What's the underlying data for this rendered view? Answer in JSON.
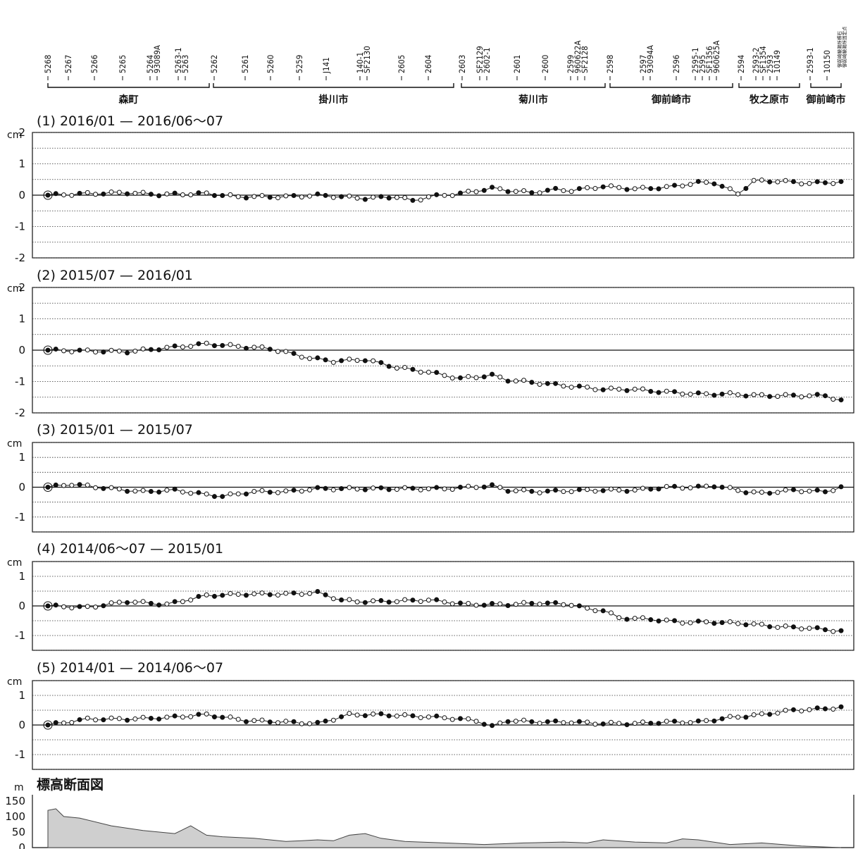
{
  "stations": [
    {
      "label": "5268"
    },
    {
      "label": "5267"
    },
    {
      "label": "5266"
    },
    {
      "label": "5265"
    },
    {
      "label": "5264\n93089A"
    },
    {
      "label": "5263-1\n5263"
    },
    {
      "label": "5262"
    },
    {
      "label": "5261"
    },
    {
      "label": "5260"
    },
    {
      "label": "5259"
    },
    {
      "label": "J141"
    },
    {
      "label": "140-1\nSF2130"
    },
    {
      "label": "2605"
    },
    {
      "label": "2604"
    },
    {
      "label": "2603"
    },
    {
      "label": "SF2129\n2602-1"
    },
    {
      "label": "2601"
    },
    {
      "label": "2600"
    },
    {
      "label": "2599\n960622A\nSF2128"
    },
    {
      "label": "2598"
    },
    {
      "label": "2597\n93094A"
    },
    {
      "label": "2596"
    },
    {
      "label": "2595-1\n2595\nSF1356\n960625A"
    },
    {
      "label": "2594"
    },
    {
      "label": "2593-2\nSF1354\n2593\n10149"
    },
    {
      "label": "2593-1"
    },
    {
      "label": "10150"
    }
  ],
  "end_note": [
    "御前崎験潮所標石",
    "御前崎験潮所固定点"
  ],
  "regions": [
    "森町",
    "掛川市",
    "菊川市",
    "御前崎市",
    "牧之原市",
    "御前崎市"
  ],
  "chart_data": [
    {
      "type": "line",
      "title": "(1) 2016/01 — 2016/06～07",
      "ylabel": "cm",
      "ylim": [
        -2,
        2
      ],
      "yticks": [
        "2",
        "1",
        "0",
        "-1",
        "-2"
      ],
      "x_key_points": [
        0,
        5,
        10,
        14,
        20,
        24,
        30,
        34,
        40,
        44,
        46,
        48,
        52,
        56,
        58,
        61,
        64,
        66,
        70,
        74,
        78,
        82,
        84,
        87,
        89,
        92,
        96,
        100
      ],
      "y_key_points": [
        0,
        0.05,
        0.08,
        0.02,
        0.05,
        -0.05,
        -0.05,
        0,
        -0.1,
        -0.05,
        -0.18,
        -0.05,
        0.05,
        0.22,
        0.15,
        0.08,
        0.18,
        0.15,
        0.28,
        0.2,
        0.25,
        0.4,
        0.4,
        0.05,
        0.45,
        0.45,
        0.38,
        0.42
      ]
    },
    {
      "type": "line",
      "title": "(2) 2015/07 — 2016/01",
      "ylabel": "cm",
      "ylim": [
        -2,
        2
      ],
      "yticks": [
        "2",
        "1",
        "0",
        "-1",
        "-2"
      ],
      "x_key_points": [
        0,
        10,
        16,
        20,
        25,
        28,
        33,
        36,
        40,
        44,
        48,
        52,
        56,
        58,
        62,
        66,
        70,
        74,
        76,
        79,
        82,
        86,
        90,
        95,
        98,
        100
      ],
      "y_key_points": [
        0,
        -0.05,
        0.1,
        0.2,
        0.1,
        0.05,
        -0.25,
        -0.35,
        -0.3,
        -0.55,
        -0.7,
        -0.9,
        -0.8,
        -0.95,
        -1.05,
        -1.15,
        -1.25,
        -1.25,
        -1.3,
        -1.35,
        -1.4,
        -1.4,
        -1.45,
        -1.45,
        -1.45,
        -1.6
      ]
    },
    {
      "type": "line",
      "title": "(3) 2015/01 — 2015/07",
      "ylabel": "cm",
      "ylim": [
        -1.5,
        1.5
      ],
      "yticks": [
        "1",
        "0",
        "-1"
      ],
      "x_key_points": [
        0,
        3,
        8,
        12,
        16,
        20,
        22,
        26,
        30,
        34,
        40,
        50,
        56,
        58,
        62,
        68,
        74,
        78,
        82,
        84,
        88,
        90,
        94,
        98,
        100
      ],
      "y_key_points": [
        0,
        0.1,
        -0.05,
        -0.15,
        -0.1,
        -0.25,
        -0.3,
        -0.15,
        -0.15,
        -0.05,
        -0.05,
        -0.05,
        0.05,
        -0.1,
        -0.15,
        -0.1,
        -0.1,
        0,
        0,
        0.05,
        -0.15,
        -0.2,
        -0.1,
        -0.15,
        0
      ]
    },
    {
      "type": "line",
      "title": "(4) 2014/06～07 — 2015/01",
      "ylabel": "cm",
      "ylim": [
        -1.5,
        1.5
      ],
      "yticks": [
        "1",
        "0",
        "-1"
      ],
      "x_key_points": [
        0,
        5,
        10,
        15,
        20,
        25,
        30,
        34,
        37,
        39,
        42,
        48,
        53,
        58,
        62,
        66,
        68,
        70,
        72,
        76,
        80,
        84,
        88,
        92,
        96,
        100
      ],
      "y_key_points": [
        0,
        -0.05,
        0.15,
        0.05,
        0.35,
        0.4,
        0.4,
        0.45,
        0.2,
        0.15,
        0.15,
        0.2,
        0.05,
        0.05,
        0.1,
        0.05,
        -0.1,
        -0.15,
        -0.4,
        -0.45,
        -0.55,
        -0.55,
        -0.6,
        -0.7,
        -0.75,
        -0.85
      ]
    },
    {
      "type": "line",
      "title": "(5) 2014/01 — 2014/06～07",
      "ylabel": "cm",
      "ylim": [
        -1.5,
        1.5
      ],
      "yticks": [
        "1",
        "0",
        "-1"
      ],
      "x_key_points": [
        0,
        5,
        10,
        15,
        20,
        25,
        30,
        34,
        38,
        42,
        46,
        50,
        54,
        56,
        58,
        62,
        66,
        70,
        74,
        78,
        82,
        86,
        90,
        94,
        98,
        100
      ],
      "y_key_points": [
        0,
        0.2,
        0.2,
        0.25,
        0.35,
        0.15,
        0.1,
        0.05,
        0.35,
        0.35,
        0.3,
        0.25,
        0.15,
        -0.05,
        0.15,
        0.1,
        0.1,
        0.05,
        0.05,
        0.1,
        0.1,
        0.25,
        0.35,
        0.5,
        0.55,
        0.6
      ]
    },
    {
      "type": "area",
      "title": "標高断面図",
      "ylabel": "m",
      "ylim": [
        0,
        170
      ],
      "yticks": [
        "150",
        "100",
        "50",
        "0"
      ],
      "x_key_points": [
        0,
        1,
        2,
        4,
        8,
        12,
        16,
        18,
        20,
        22,
        26,
        30,
        32,
        34,
        36,
        38,
        40,
        42,
        45,
        47,
        50,
        55,
        60,
        65,
        68,
        70,
        74,
        78,
        80,
        82,
        86,
        90,
        95,
        100
      ],
      "y_key_points": [
        120,
        125,
        100,
        95,
        70,
        55,
        45,
        70,
        40,
        35,
        30,
        20,
        22,
        25,
        22,
        40,
        45,
        30,
        20,
        18,
        15,
        10,
        15,
        18,
        15,
        25,
        18,
        15,
        28,
        25,
        10,
        15,
        5,
        0
      ]
    }
  ]
}
